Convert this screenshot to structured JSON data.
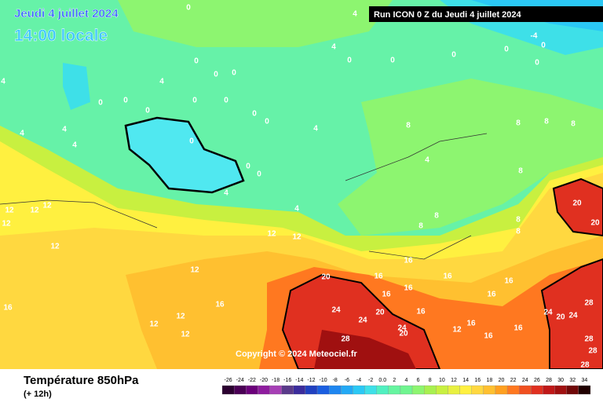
{
  "header": {
    "date": "Jeudi 4 juillet 2024",
    "time": "14:00 locale",
    "run": "Run ICON 0 Z du Jeudi 4 juillet 2024"
  },
  "copyright": "Copyright © 2024 Meteociel.fr",
  "footer": {
    "title": "Température 850hPa",
    "lead": "(+ 12h)"
  },
  "legend": {
    "items": [
      {
        "label": "-26",
        "color": "#2b0030"
      },
      {
        "label": "-24",
        "color": "#4a0055"
      },
      {
        "label": "-22",
        "color": "#6b007a"
      },
      {
        "label": "-20",
        "color": "#8e1c9e"
      },
      {
        "label": "-18",
        "color": "#a63fb5"
      },
      {
        "label": "-16",
        "color": "#5a3a8a"
      },
      {
        "label": "-14",
        "color": "#3b2c9c"
      },
      {
        "label": "-12",
        "color": "#2040c0"
      },
      {
        "label": "-10",
        "color": "#1a5ee0"
      },
      {
        "label": "-8",
        "color": "#1e86f0"
      },
      {
        "label": "-6",
        "color": "#23a9f5"
      },
      {
        "label": "-4",
        "color": "#2bc8f5"
      },
      {
        "label": "-2",
        "color": "#3ee0e8"
      },
      {
        "label": "0.0",
        "color": "#50f0c0"
      },
      {
        "label": "2",
        "color": "#66f5a0"
      },
      {
        "label": "4",
        "color": "#70f590"
      },
      {
        "label": "6",
        "color": "#8df570"
      },
      {
        "label": "8",
        "color": "#a8f050"
      },
      {
        "label": "10",
        "color": "#c8f040"
      },
      {
        "label": "12",
        "color": "#e8f040"
      },
      {
        "label": "14",
        "color": "#fff040"
      },
      {
        "label": "16",
        "color": "#ffd840"
      },
      {
        "label": "18",
        "color": "#ffc030"
      },
      {
        "label": "20",
        "color": "#ffa020"
      },
      {
        "label": "22",
        "color": "#ff7820"
      },
      {
        "label": "24",
        "color": "#f05020"
      },
      {
        "label": "26",
        "color": "#e03020"
      },
      {
        "label": "28",
        "color": "#c01818"
      },
      {
        "label": "30",
        "color": "#a01010"
      },
      {
        "label": "32",
        "color": "#700808"
      },
      {
        "label": "34",
        "color": "#200000"
      }
    ]
  },
  "contour_labels": [
    "0",
    "4",
    "-4",
    "4",
    "0",
    "0",
    "0",
    "0",
    "0",
    "0",
    "0",
    "0",
    "0",
    "4",
    "0",
    "0",
    "0",
    "0",
    "0",
    "0",
    "0",
    "0",
    "0",
    "0",
    "4",
    "4",
    "8",
    "8",
    "8",
    "8",
    "4",
    "8",
    "8",
    "8",
    "4",
    "8",
    "8",
    "4",
    "4",
    "4",
    "4",
    "12",
    "12",
    "12",
    "12",
    "12",
    "12",
    "12",
    "12",
    "16",
    "16",
    "12",
    "12",
    "12",
    "16",
    "16",
    "16",
    "16",
    "16",
    "16",
    "16",
    "16",
    "20",
    "20",
    "20",
    "20",
    "24",
    "24",
    "24",
    "20",
    "28",
    "12",
    "16",
    "16",
    "16",
    "24",
    "20",
    "24",
    "28",
    "28",
    "28",
    "28"
  ]
}
